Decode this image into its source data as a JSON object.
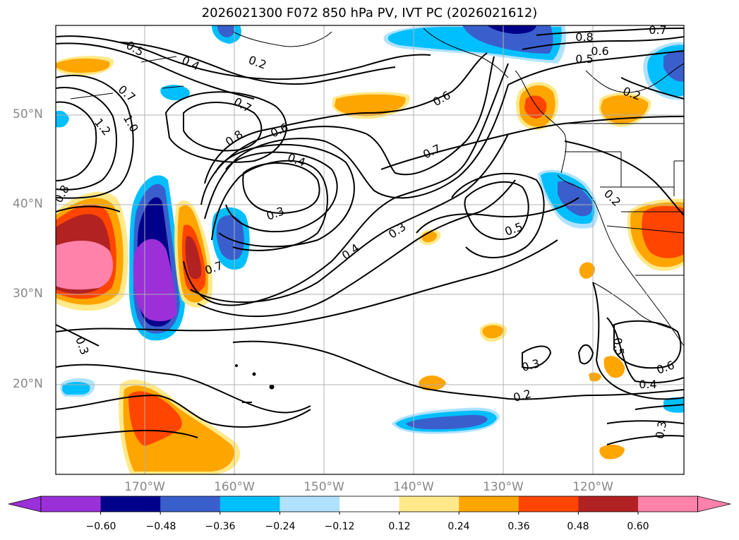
{
  "title": "2026021300 F072 850 hPa PV, IVT PC (2026021612)",
  "lat_labels": [
    "50°N",
    "40°N",
    "30°N",
    "20°N"
  ],
  "lon_labels": [
    "170°W",
    "160°W",
    "150°W",
    "140°W",
    "130°W",
    "120°W"
  ],
  "contour_labels": [
    "0.5",
    "0.4",
    "0.2",
    "0.7",
    "1.2",
    "1.0",
    "0.7",
    "0.8",
    "0.6",
    "0.4",
    "0.3",
    "0.7",
    "0.8",
    "0.6",
    "0.7",
    "0.5",
    "0.7",
    "0.5",
    "0.6",
    "0.4",
    "0.3",
    "0.3",
    "0.2",
    "0.2",
    "0.3",
    "0.5",
    "0.6",
    "0.4",
    "0.3",
    "0.2",
    "0.8"
  ],
  "colorbar": {
    "ticks": [
      "−0.60",
      "−0.48",
      "−0.36",
      "−0.24",
      "−0.12",
      "0.12",
      "0.24",
      "0.36",
      "0.48",
      "0.60"
    ],
    "colors": [
      "#9b30d9",
      "#00008b",
      "#3a5fcd",
      "#00bfff",
      "#b0e2ff",
      "#ffffff",
      "#ffe98a",
      "#ffa500",
      "#ff4500",
      "#b22222",
      "#ff82ab",
      "#ff82ab"
    ]
  },
  "chart_data": {
    "type": "map",
    "title": "2026021300 F072 850 hPa PV, IVT PC (2026021612)",
    "variable_contours": "850 hPa PV",
    "variable_fill": "IVT PC",
    "lat_range": [
      10,
      60
    ],
    "lon_range": [
      -180,
      -110
    ],
    "fill_levels": [
      -0.6,
      -0.48,
      -0.36,
      -0.24,
      -0.12,
      0.12,
      0.24,
      0.36,
      0.48,
      0.6
    ]
  }
}
